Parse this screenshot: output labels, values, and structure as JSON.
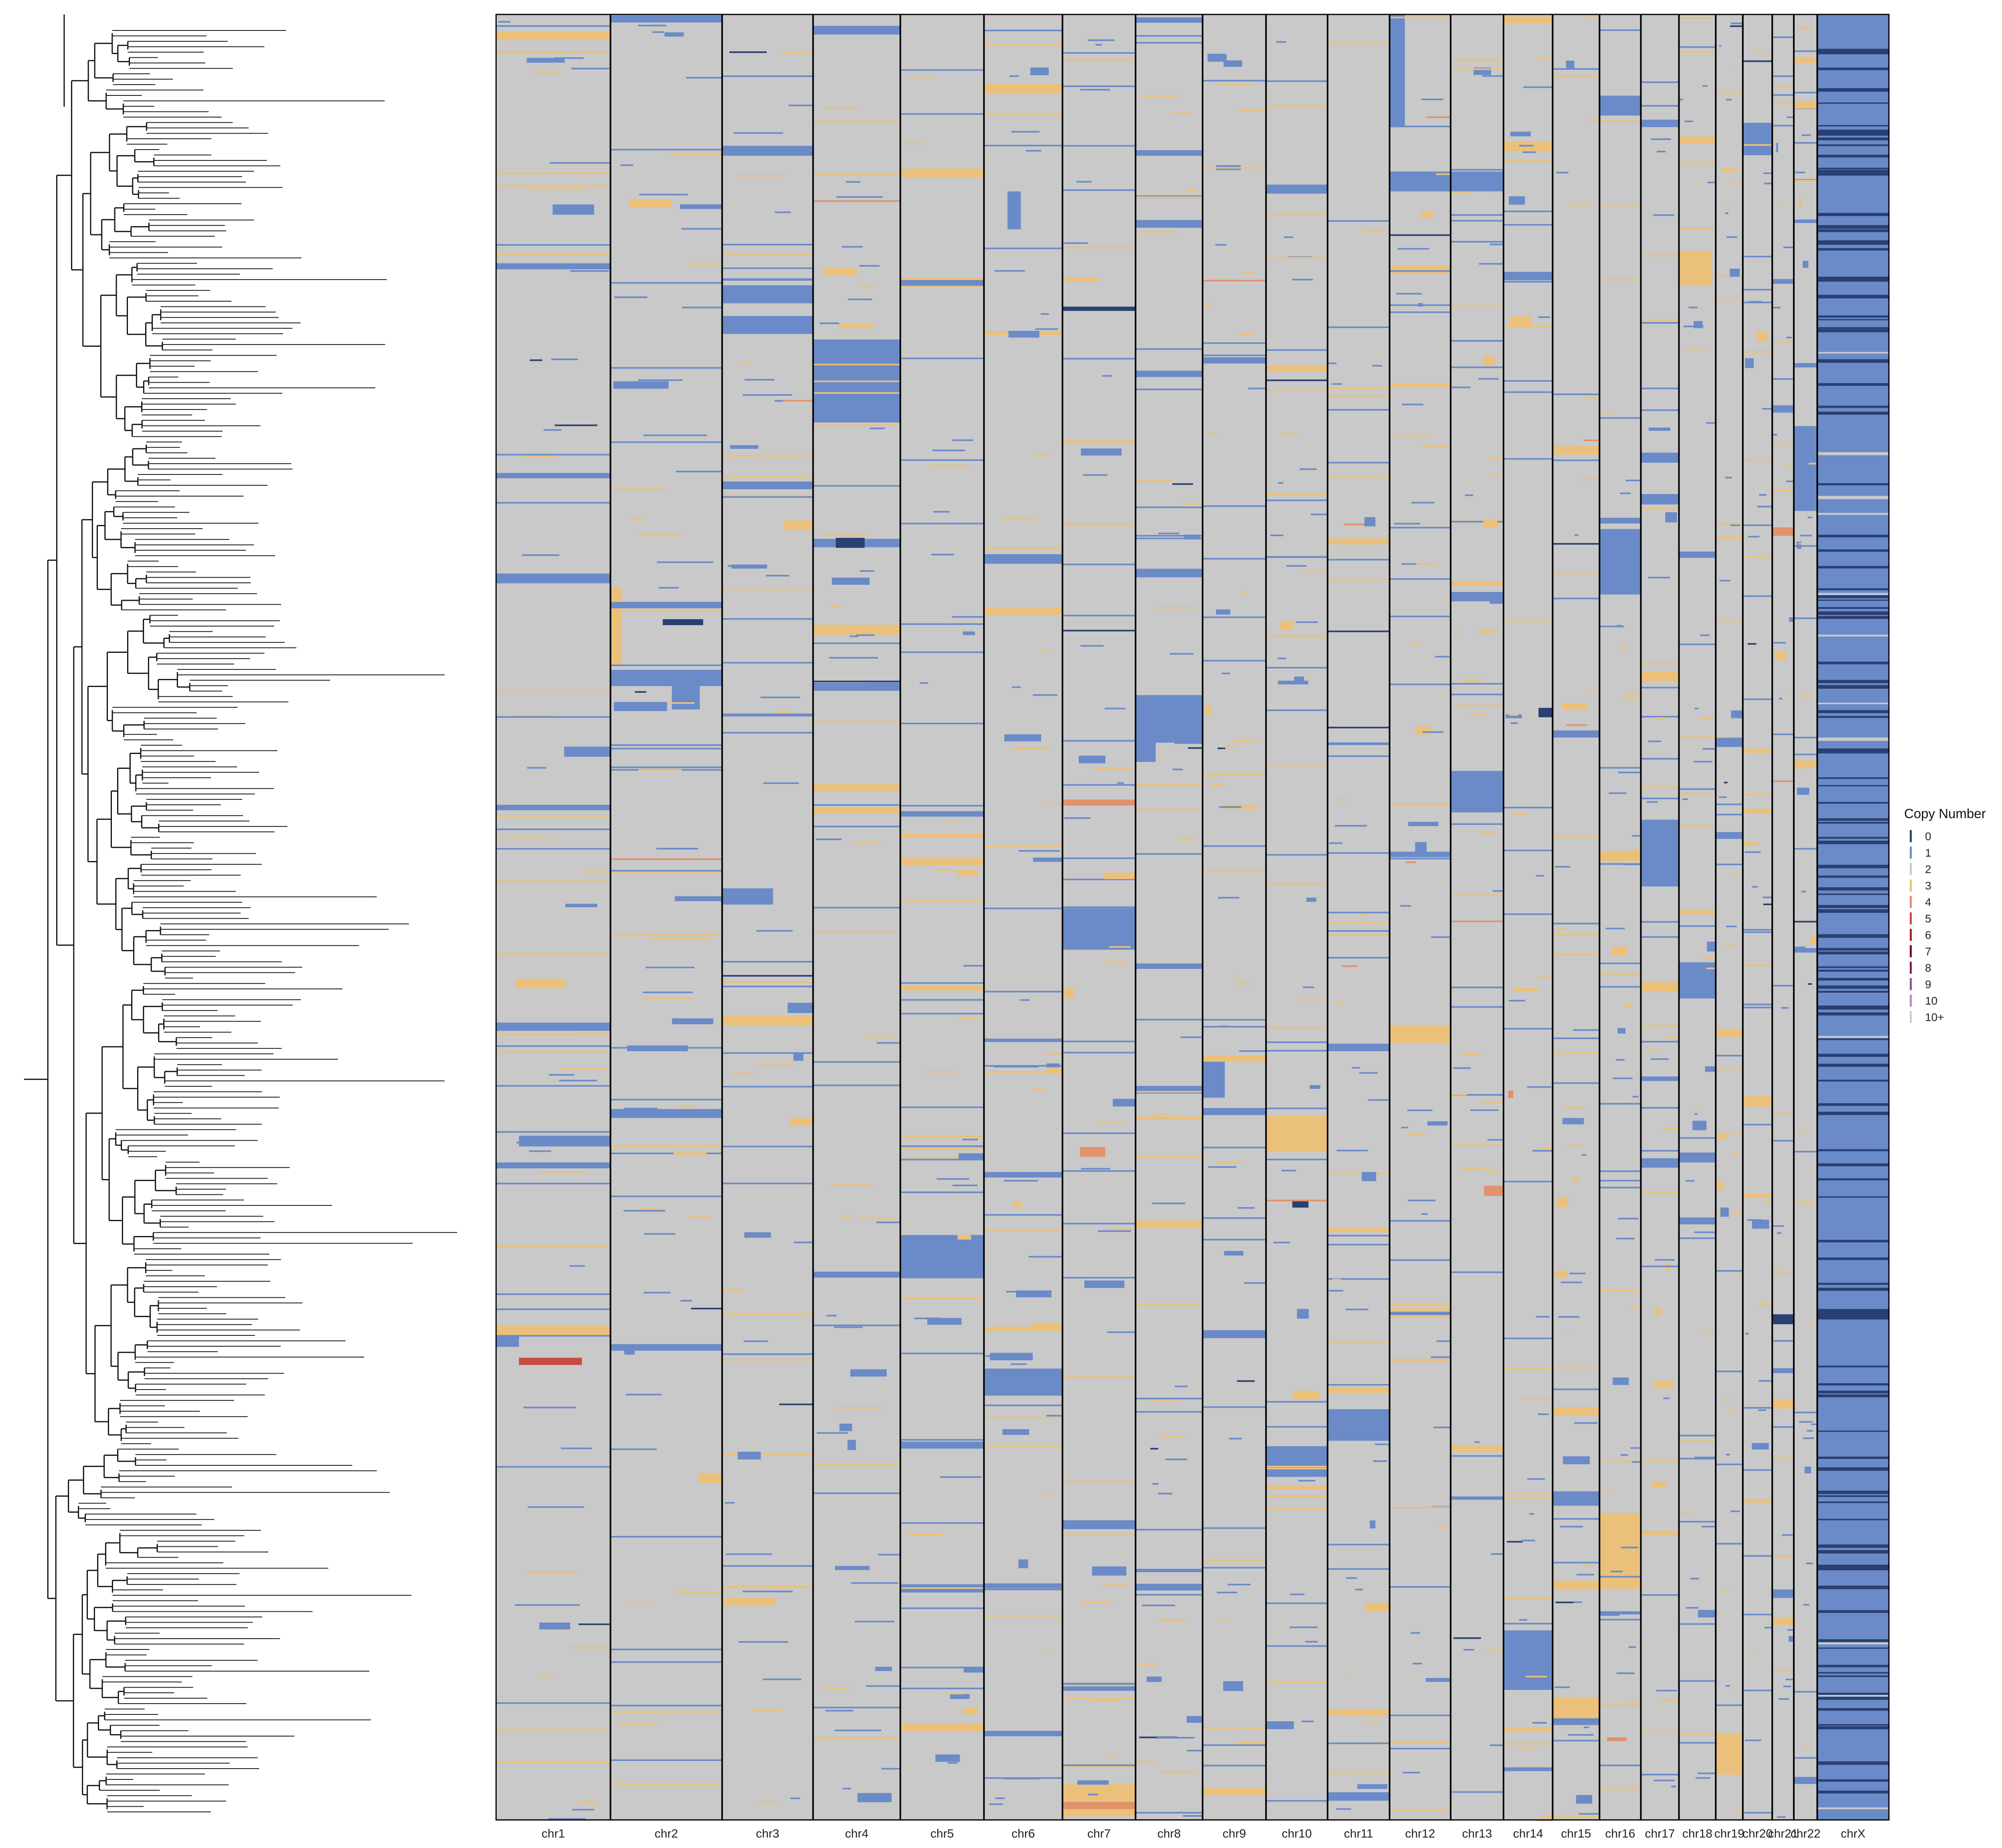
{
  "chart_data": {
    "type": "heatmap",
    "title": "",
    "xlabel": "",
    "ylabel": "",
    "background_state": "2",
    "chromosomes": [
      "chr1",
      "chr2",
      "chr3",
      "chr4",
      "chr5",
      "chr6",
      "chr7",
      "chr8",
      "chr9",
      "chr10",
      "chr11",
      "chr12",
      "chr13",
      "chr14",
      "chr15",
      "chr16",
      "chr17",
      "chr18",
      "chr19",
      "chr20",
      "chr21",
      "chr22",
      "chrX"
    ],
    "chromosome_lengths_mb": [
      249,
      243,
      198,
      190,
      182,
      171,
      159,
      146,
      138,
      134,
      135,
      133,
      115,
      107,
      102,
      90,
      83,
      80,
      59,
      64,
      47,
      51,
      156
    ],
    "cell_count_approx": 330,
    "legend": {
      "title": "Copy Number",
      "placement": "right",
      "entries": [
        {
          "label": "0",
          "color": "#2a3f72"
        },
        {
          "label": "1",
          "color": "#6a8bc8"
        },
        {
          "label": "2",
          "color": "#c9c9c9"
        },
        {
          "label": "3",
          "color": "#ebc07a"
        },
        {
          "label": "4",
          "color": "#e0926a"
        },
        {
          "label": "5",
          "color": "#c94a42"
        },
        {
          "label": "6",
          "color": "#9e1f2c"
        },
        {
          "label": "7",
          "color": "#6f0f24"
        },
        {
          "label": "8",
          "color": "#7a1e55"
        },
        {
          "label": "9",
          "color": "#9a4d8e"
        },
        {
          "label": "10",
          "color": "#b78ab9"
        },
        {
          "label": "10+",
          "color": "#d7c6e0"
        }
      ]
    },
    "dendrogram": {
      "orientation": "left",
      "leaves_approx": 330
    },
    "x_loss_note_state": "1"
  },
  "colors": {
    "state_1": "#6a8bc8",
    "state_0": "#2a3f72",
    "state_2": "#c9c9c9",
    "state_3": "#ebc07a",
    "state_4": "#e0926a",
    "divider": "#000000",
    "tree_line": "#111111"
  }
}
